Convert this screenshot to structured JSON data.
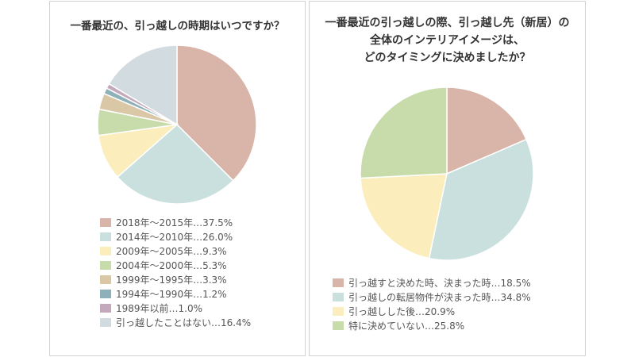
{
  "chart_data": [
    {
      "type": "pie",
      "title": "一番最近の、引っ越しの時期はいつですか？",
      "slices": [
        {
          "label": "2018年～2015年",
          "value": 37.5,
          "legend_text": "2018年～2015年…37.5%",
          "color": "#d8b5a8"
        },
        {
          "label": "2014年～2010年",
          "value": 26.0,
          "legend_text": "2014年～2010年…26.0%",
          "color": "#c9e0de"
        },
        {
          "label": "2009年～2005年",
          "value": 9.3,
          "legend_text": "2009年～2005年…9.3%",
          "color": "#fbedbc"
        },
        {
          "label": "2004年～2000年",
          "value": 5.3,
          "legend_text": "2004年～2000年…5.3%",
          "color": "#c8dbab"
        },
        {
          "label": "1999年～1995年",
          "value": 3.3,
          "legend_text": "1999年～1995年…3.3%",
          "color": "#d9c7a6"
        },
        {
          "label": "1994年～1990年",
          "value": 1.2,
          "legend_text": "1994年～1990年…1.2%",
          "color": "#8eb1b9"
        },
        {
          "label": "1989年以前",
          "value": 1.0,
          "legend_text": "1989年以前…1.0%",
          "color": "#c3a9bb"
        },
        {
          "label": "引っ越したことはない",
          "value": 16.4,
          "legend_text": "引っ越したことはない…16.4%",
          "color": "#d2dbdf"
        }
      ]
    },
    {
      "type": "pie",
      "title_lines": [
        "一番最近の引っ越しの際、引っ越し先（新居）の",
        "全体のインテリアイメージは、",
        "どのタイミングに決めましたか？"
      ],
      "slices": [
        {
          "label": "引っ越すと決めた時、決まった時",
          "value": 18.5,
          "legend_text": "引っ越すと決めた時、決まった時…18.5%",
          "color": "#d8b5a8"
        },
        {
          "label": "引っ越しの転居物件が決まった時",
          "value": 34.8,
          "legend_text": "引っ越しの転居物件が決まった時…34.8%",
          "color": "#c9e0de"
        },
        {
          "label": "引っ越しした後",
          "value": 20.9,
          "legend_text": "引っ越しした後…20.9%",
          "color": "#fbedbc"
        },
        {
          "label": "特に決めていない",
          "value": 25.8,
          "legend_text": "特に決めていない…25.8%",
          "color": "#c8dbab"
        }
      ]
    }
  ]
}
